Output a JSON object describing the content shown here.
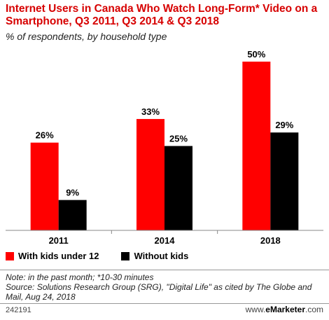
{
  "title": "Internet Users in Canada Who Watch Long-Form* Video on a Smartphone, Q3 2011, Q3 2014 & Q3 2018",
  "subtitle": "% of respondents, by household type",
  "legend": {
    "series_0": "With kids under 12",
    "series_1": "Without kids"
  },
  "notes": {
    "line1": "Note: in the past month; *10-30 minutes",
    "line2": "Source: Solutions Research Group (SRG), \"Digital Life\" as cited by The Globe and Mail, Aug 24, 2018"
  },
  "footer": {
    "id": "242191",
    "brand_prefix": "www.",
    "brand_name": "eMarketer",
    "brand_suffix": ".com"
  },
  "colors": {
    "series_0": "#ff0000",
    "series_1": "#000000",
    "title": "#d70000"
  },
  "chart_data": {
    "type": "bar",
    "categories": [
      "2011",
      "2014",
      "2018"
    ],
    "series": [
      {
        "name": "With kids under 12",
        "values": [
          26,
          33,
          50
        ]
      },
      {
        "name": "Without kids",
        "values": [
          9,
          25,
          29
        ]
      }
    ],
    "value_suffix": "%",
    "ylim": [
      0,
      50
    ],
    "grid": false,
    "legend_position": "bottom-left"
  }
}
